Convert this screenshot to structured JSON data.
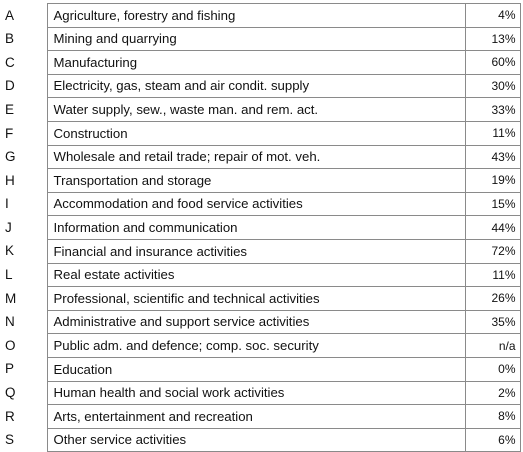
{
  "sectors": [
    {
      "code": "A",
      "name": "Agriculture, forestry and fishing",
      "value": "4%"
    },
    {
      "code": "B",
      "name": "Mining and quarrying",
      "value": "13%"
    },
    {
      "code": "C",
      "name": "Manufacturing",
      "value": "60%"
    },
    {
      "code": "D",
      "name": "Electricity, gas, steam and air condit. supply",
      "value": "30%"
    },
    {
      "code": "E",
      "name": "Water supply, sew., waste man. and rem. act.",
      "value": "33%"
    },
    {
      "code": "F",
      "name": "Construction",
      "value": "11%"
    },
    {
      "code": "G",
      "name": "Wholesale and retail trade; repair of mot. veh.",
      "value": "43%"
    },
    {
      "code": "H",
      "name": "Transportation and storage",
      "value": "19%"
    },
    {
      "code": "I",
      "name": "Accommodation and food service activities",
      "value": "15%"
    },
    {
      "code": "J",
      "name": "Information and communication",
      "value": "44%"
    },
    {
      "code": "K",
      "name": "Financial and insurance activities",
      "value": "72%"
    },
    {
      "code": "L",
      "name": "Real estate activities",
      "value": "11%"
    },
    {
      "code": "M",
      "name": "Professional, scientific and technical activities",
      "value": "26%"
    },
    {
      "code": "N",
      "name": "Administrative and support service activities",
      "value": "35%"
    },
    {
      "code": "O",
      "name": "Public adm. and defence; comp. soc. security",
      "value": "n/a"
    },
    {
      "code": "P",
      "name": "Education",
      "value": "0%"
    },
    {
      "code": "Q",
      "name": "Human health and social work activities",
      "value": "2%"
    },
    {
      "code": "R",
      "name": "Arts, entertainment and recreation",
      "value": "8%"
    },
    {
      "code": "S",
      "name": "Other service activities",
      "value": "6%"
    }
  ]
}
